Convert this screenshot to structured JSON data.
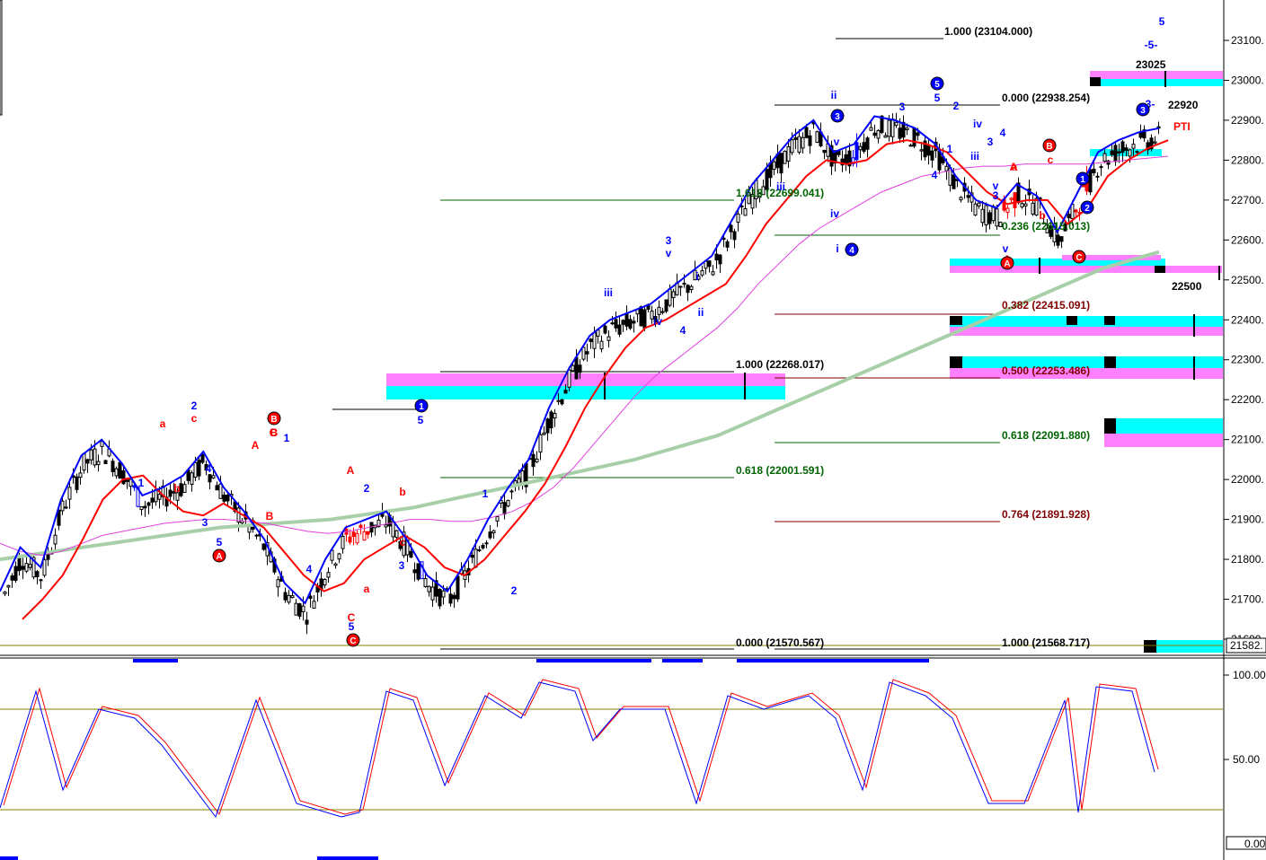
{
  "colors": {
    "blue_band": "#0000ff",
    "red_band": "#ff0000",
    "magenta_ma": "#e040e0",
    "green_ma": "#a8d0a8",
    "bull_candle": "#000000",
    "cyan_zone": "#00ffff",
    "pink_zone": "#ff80ff",
    "fib_green": "#006400",
    "fib_darkred": "#800000",
    "fib_black": "#000000",
    "stoch_line": "#808000"
  },
  "price_axis": {
    "ticks": [
      "23100.",
      "23000.",
      "22900.",
      "22800.",
      "22700.",
      "22600.",
      "22500.",
      "22400.",
      "22300.",
      "22200.",
      "22100.",
      "22000.",
      "21900.",
      "21800.",
      "21700.",
      "21600."
    ],
    "current_price_label": "21582."
  },
  "stoch_axis": {
    "ticks": [
      "100.00",
      "50.00"
    ],
    "bottom_label": "0.00"
  },
  "fib_labels": [
    {
      "text": "1.000 (23104.000)",
      "color": "fib_black"
    },
    {
      "text": "0.000 (22938.254)",
      "color": "fib_black"
    },
    {
      "text": "1.618 (22699.041)",
      "color": "fib_green"
    },
    {
      "text": "0.236 (22615.013)",
      "color": "fib_green"
    },
    {
      "text": "0.382 (22415.091)",
      "color": "fib_darkred"
    },
    {
      "text": "1.000 (22268.017)",
      "color": "fib_black"
    },
    {
      "text": "0.500 (22253.486)",
      "color": "fib_darkred"
    },
    {
      "text": "0.618 (22091.880)",
      "color": "fib_green"
    },
    {
      "text": "0.618 (22001.591)",
      "color": "fib_green"
    },
    {
      "text": "0.764 (21891.928)",
      "color": "fib_darkred"
    },
    {
      "text": "0.000 (21570.567)",
      "color": "fib_black"
    },
    {
      "text": "1.000 (21568.717)",
      "color": "fib_black"
    }
  ],
  "price_labels": [
    "23025",
    "22920",
    "22500",
    "PTI"
  ],
  "wave_labels_blue": [
    "1",
    "2",
    "3",
    "4",
    "5",
    "1",
    "2",
    "3",
    "4",
    "5",
    "1",
    "2",
    "3",
    "4",
    "5",
    "iii",
    "iv",
    "v",
    "i",
    "ii",
    "iii",
    "iv",
    "v",
    "i",
    "ii",
    "3",
    "v",
    "4",
    "1",
    "2",
    "3",
    "4",
    "5",
    "iv",
    "iii",
    "v",
    "3",
    "5",
    "-5-",
    "-3-",
    "3"
  ],
  "wave_labels_red": [
    "a",
    "b",
    "c",
    "A",
    "B",
    "C",
    "a",
    "b",
    "c",
    "A",
    "B",
    "C",
    "a",
    "b",
    "c",
    "A",
    "B",
    "C",
    "A"
  ],
  "circled_labels": [
    {
      "text": "1",
      "color": "blue_band"
    },
    {
      "text": "3",
      "color": "blue_band"
    },
    {
      "text": "4",
      "color": "blue_band"
    },
    {
      "text": "5",
      "color": "blue_band"
    },
    {
      "text": "1",
      "color": "blue_band"
    },
    {
      "text": "2",
      "color": "blue_band"
    },
    {
      "text": "3",
      "color": "blue_band"
    },
    {
      "text": "A",
      "color": "red_band"
    },
    {
      "text": "B",
      "color": "red_band"
    },
    {
      "text": "C",
      "color": "red_band"
    },
    {
      "text": "A",
      "color": "red_band"
    },
    {
      "text": "B",
      "color": "red_band"
    },
    {
      "text": "C",
      "color": "red_band"
    }
  ],
  "chart_data": {
    "type": "line",
    "title": "",
    "xlabel": "",
    "ylabel": "",
    "ylim": [
      21570,
      23160
    ],
    "grid": false,
    "series": [
      {
        "values": [
          21720,
          21830,
          21780,
          21950,
          22060,
          22100,
          22040,
          21960,
          21980,
          22010,
          22070,
          21980,
          21920,
          21850,
          21740,
          21690,
          21800,
          21880,
          21900,
          21920,
          21850,
          21760,
          21720,
          21800,
          21900,
          21980,
          22050,
          22180,
          22280,
          22360,
          22400,
          22420,
          22440,
          22480,
          22520,
          22560,
          22650,
          22740,
          22800,
          22860,
          22900,
          22820,
          22840,
          22910,
          22900,
          22880,
          22840,
          22760,
          22700,
          22680,
          22740,
          22710,
          22620,
          22720,
          22820,
          22850,
          22870,
          22880
        ]
      },
      {
        "values": [
          21650,
          21700,
          21760,
          21850,
          21950,
          22000,
          22010,
          21960,
          21920,
          21910,
          21940,
          21910,
          21880,
          21820,
          21760,
          21720,
          21740,
          21800,
          21830,
          21860,
          21830,
          21780,
          21760,
          21800,
          21860,
          21920,
          21990,
          22080,
          22180,
          22260,
          22330,
          22380,
          22400,
          22430,
          22460,
          22490,
          22560,
          22640,
          22700,
          22760,
          22800,
          22790,
          22800,
          22840,
          22850,
          22840,
          22820,
          22770,
          22720,
          22690,
          22700,
          22700,
          22640,
          22680,
          22760,
          22800,
          22830,
          22850
        ]
      },
      {
        "values": [
          21840,
          21820,
          21810,
          21820,
          21840,
          21860,
          21870,
          21880,
          21890,
          21895,
          21900,
          21900,
          21895,
          21890,
          21880,
          21870,
          21865,
          21870,
          21880,
          21890,
          21900,
          21900,
          21895,
          21895,
          21905,
          21920,
          21945,
          21980,
          22030,
          22090,
          22150,
          22210,
          22260,
          22300,
          22340,
          22380,
          22430,
          22490,
          22540,
          22590,
          22630,
          22660,
          22690,
          22720,
          22740,
          22760,
          22770,
          22780,
          22785,
          22785,
          22790,
          22790,
          22790,
          22790,
          22795,
          22800,
          22805,
          22810
        ]
      },
      {
        "values": [
          21800,
          21810,
          21820,
          21830,
          21840,
          21850,
          21860,
          21870,
          21880,
          21885,
          21890,
          21895,
          21900,
          21910,
          21920,
          21930,
          21945,
          21960,
          21975,
          21990,
          22005,
          22020,
          22035,
          22050,
          22070,
          22090,
          22110,
          22140,
          22170,
          22200,
          22230,
          22260,
          22290,
          22320,
          22350,
          22380,
          22410,
          22440,
          22470,
          22500,
          22530,
          22550,
          22570
        ]
      }
    ]
  }
}
